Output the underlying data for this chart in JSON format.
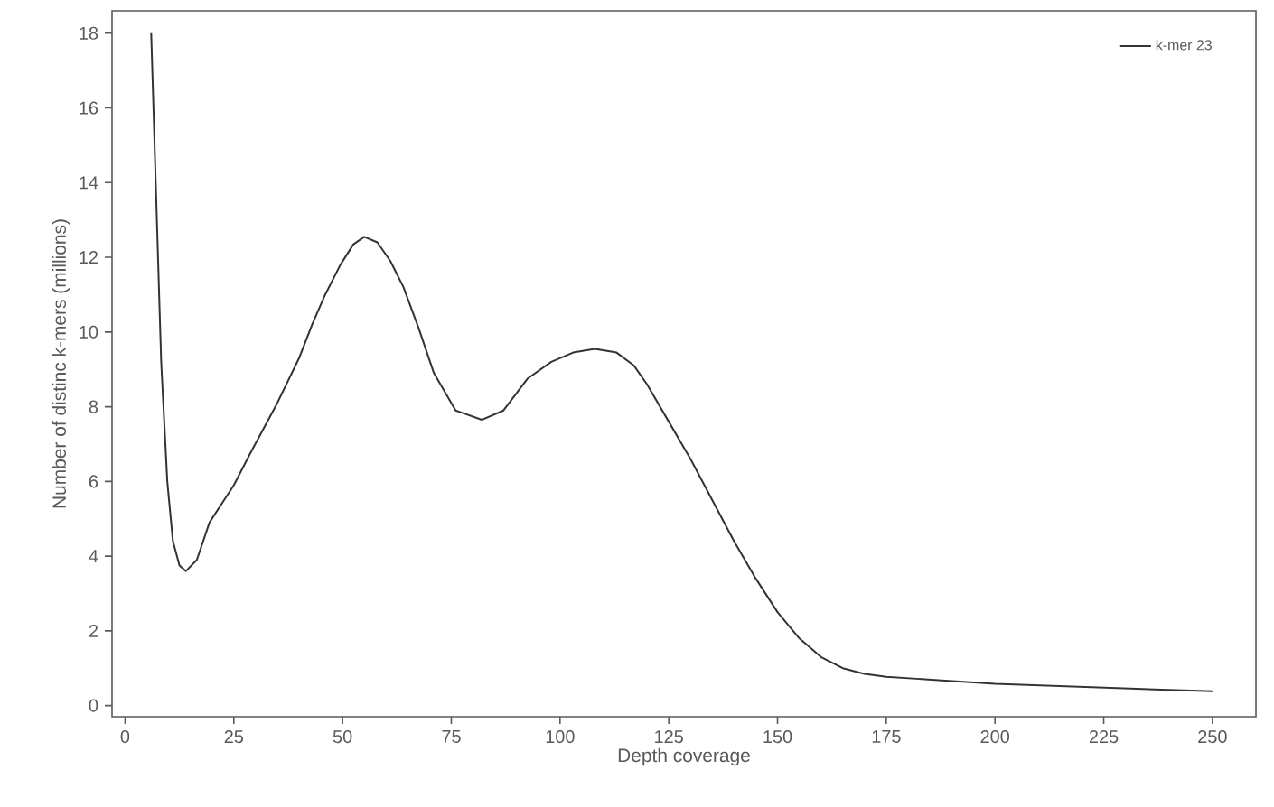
{
  "chart_data": {
    "type": "line",
    "xlabel": "Depth coverage",
    "ylabel": "Number of distinc k-mers (millions)",
    "xlim": [
      -3,
      260
    ],
    "ylim": [
      -0.3,
      18.6
    ],
    "xticks": [
      0,
      25,
      50,
      75,
      100,
      125,
      150,
      175,
      200,
      225,
      250
    ],
    "yticks": [
      0,
      2,
      4,
      6,
      8,
      10,
      12,
      14,
      16,
      18
    ],
    "legend": "top right",
    "marker": "none",
    "line_style": "solid",
    "grid": false,
    "series": [
      {
        "name": "k-mer 23",
        "color": "#333333",
        "x": [
          6,
          8.3,
          9.7,
          11,
          12.5,
          14,
          16.5,
          19.4,
          25,
          29,
          35,
          40,
          43,
          46,
          49.5,
          52.5,
          55,
          58,
          61,
          64,
          67.5,
          71,
          76,
          82,
          87,
          92.5,
          98,
          103,
          108,
          113,
          117,
          120,
          125,
          130,
          135,
          140,
          145,
          150,
          155,
          160,
          165,
          170,
          175,
          187,
          200,
          225,
          250
        ],
        "values": [
          18,
          9.2,
          6,
          4.4,
          3.75,
          3.6,
          3.9,
          4.9,
          5.9,
          6.8,
          8.1,
          9.3,
          10.2,
          11.0,
          11.8,
          12.35,
          12.55,
          12.4,
          11.9,
          11.2,
          10.1,
          8.9,
          7.9,
          7.65,
          7.9,
          8.75,
          9.2,
          9.45,
          9.55,
          9.45,
          9.1,
          8.6,
          7.6,
          6.6,
          5.5,
          4.4,
          3.4,
          2.5,
          1.8,
          1.3,
          1.0,
          0.85,
          0.77,
          0.68,
          0.58,
          0.48,
          0.38
        ]
      }
    ]
  }
}
